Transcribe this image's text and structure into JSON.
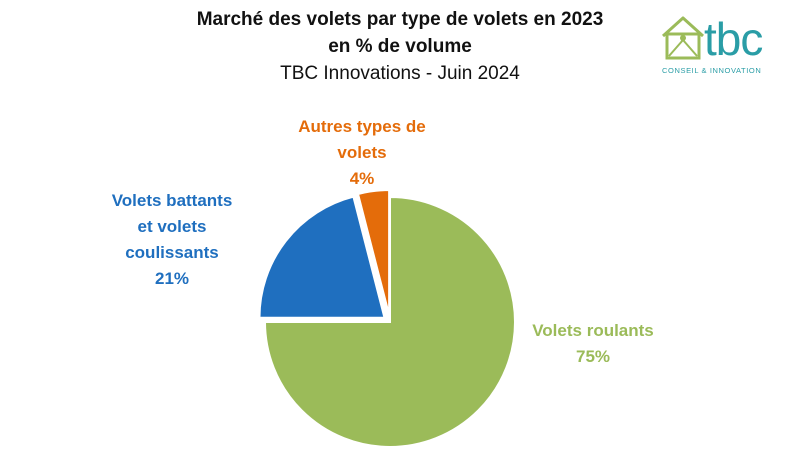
{
  "title_line1": "Marché des volets par type de volets en 2023",
  "title_line2": "en % de volume",
  "subtitle": "TBC Innovations - Juin 2024",
  "logo": {
    "word": "tbc",
    "tagline": "CONSEIL & INNOVATION",
    "color": "#2a9da6",
    "icon": "house-icon"
  },
  "chart_data": {
    "type": "pie",
    "title": "Marché des volets par type de volets en 2023 en % de volume",
    "subtitle": "TBC Innovations - Juin 2024",
    "unit": "%",
    "slices": [
      {
        "label_lines": [
          "Volets roulants"
        ],
        "value": 75,
        "value_label": "75%",
        "color": "#9bbb59",
        "exploded": false
      },
      {
        "label_lines": [
          "Volets battants",
          "et volets",
          "coulissants"
        ],
        "value": 21,
        "value_label": "21%",
        "color": "#1f6fbf",
        "exploded": true
      },
      {
        "label_lines": [
          "Autres types de",
          "volets"
        ],
        "value": 4,
        "value_label": "4%",
        "color": "#e46c0a",
        "exploded": true
      }
    ]
  }
}
